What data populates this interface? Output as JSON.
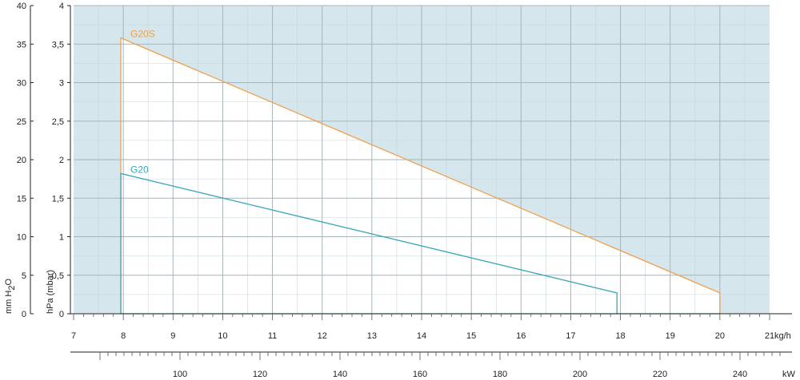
{
  "chart_data": {
    "type": "line",
    "title": "",
    "xlabel": "kg/h",
    "x2label": "kW",
    "ylabel_left": "mm H2O",
    "ylabel_left_parts": [
      "mm H",
      "2",
      "O"
    ],
    "ylabel_right": "hPa (mbar)",
    "xlim": [
      7,
      21
    ],
    "ylim": [
      0,
      4
    ],
    "y_mm_ticks": [
      0,
      5,
      10,
      15,
      20,
      25,
      30,
      35,
      40
    ],
    "y_hpa_ticks": [
      0,
      0.5,
      1,
      1.5,
      2,
      2.5,
      3,
      3.5,
      4
    ],
    "y_hpa_tick_labels": [
      "0",
      "0,5",
      "1",
      "1,5",
      "2",
      "2,5",
      "3",
      "3,5",
      "4"
    ],
    "x_kgh_ticks": [
      "7",
      "8",
      "9",
      "10",
      "11",
      "12",
      "13",
      "14",
      "15",
      "16",
      "17",
      "18",
      "19",
      "20",
      "21"
    ],
    "kw_ticks": [
      "100",
      "120",
      "140",
      "160",
      "180",
      "200",
      "220",
      "240"
    ],
    "kw_range": [
      80,
      250
    ],
    "series": [
      {
        "name": "G20S",
        "color": "#f0a050",
        "points": [
          [
            7.95,
            0
          ],
          [
            7.95,
            3.58
          ],
          [
            20.0,
            0.27
          ],
          [
            20.0,
            0
          ]
        ]
      },
      {
        "name": "G20",
        "color": "#3aa6b9",
        "points": [
          [
            7.95,
            0
          ],
          [
            7.95,
            1.82
          ],
          [
            17.93,
            0.27
          ],
          [
            17.93,
            0
          ]
        ]
      }
    ],
    "working_area": [
      [
        7.95,
        0
      ],
      [
        7.95,
        3.58
      ],
      [
        20.0,
        0.27
      ],
      [
        20.0,
        0
      ]
    ],
    "colors": {
      "background": "#d5e6ec",
      "working_area": "#ffffff",
      "grid_major": "#a8b4ba",
      "grid_minor": "#c5d5db",
      "axis": "#222222"
    },
    "grid": true
  }
}
